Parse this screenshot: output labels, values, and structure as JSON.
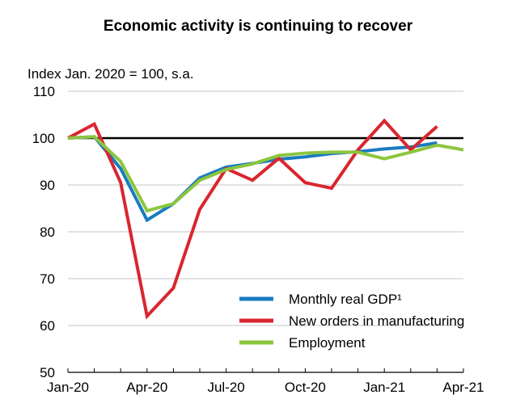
{
  "chart_data": {
    "type": "line",
    "title": "Economic activity is continuing to recover",
    "ylabel": "Index Jan. 2020 = 100, s.a.",
    "xlabel": "",
    "ylim": [
      50,
      110
    ],
    "yticks": [
      50,
      60,
      70,
      80,
      90,
      100,
      110
    ],
    "reference_line": 100,
    "x": [
      "Jan-20",
      "Feb-20",
      "Mar-20",
      "Apr-20",
      "May-20",
      "Jun-20",
      "Jul-20",
      "Aug-20",
      "Sep-20",
      "Oct-20",
      "Nov-20",
      "Dec-20",
      "Jan-21",
      "Feb-21",
      "Mar-21",
      "Apr-21"
    ],
    "xtick_labels": [
      "Jan-20",
      "Apr-20",
      "Jul-20",
      "Oct-20",
      "Jan-21",
      "Apr-21"
    ],
    "xtick_indices": [
      0,
      3,
      6,
      9,
      12,
      15
    ],
    "grid": true,
    "legend_position": "bottom-right",
    "series": [
      {
        "name": "Monthly real GDP¹",
        "color": "#1a7bbf",
        "values": [
          100,
          100.3,
          93.5,
          82.5,
          86,
          91.5,
          93.8,
          94.6,
          95.5,
          96,
          96.7,
          97.1,
          97.7,
          98.1,
          99,
          null
        ]
      },
      {
        "name": "New orders in manufacturing",
        "color": "#d9262e",
        "values": [
          100,
          103,
          90.5,
          62,
          68,
          84.8,
          93.5,
          91,
          95.7,
          90.5,
          89.3,
          97.5,
          103.7,
          97.5,
          102.5,
          null
        ]
      },
      {
        "name": "Employment",
        "color": "#8cc63f",
        "values": [
          100,
          100.3,
          95,
          84.5,
          86,
          91,
          93.3,
          94.5,
          96.3,
          96.8,
          97,
          97,
          95.6,
          97,
          98.5,
          97.5
        ]
      }
    ]
  }
}
